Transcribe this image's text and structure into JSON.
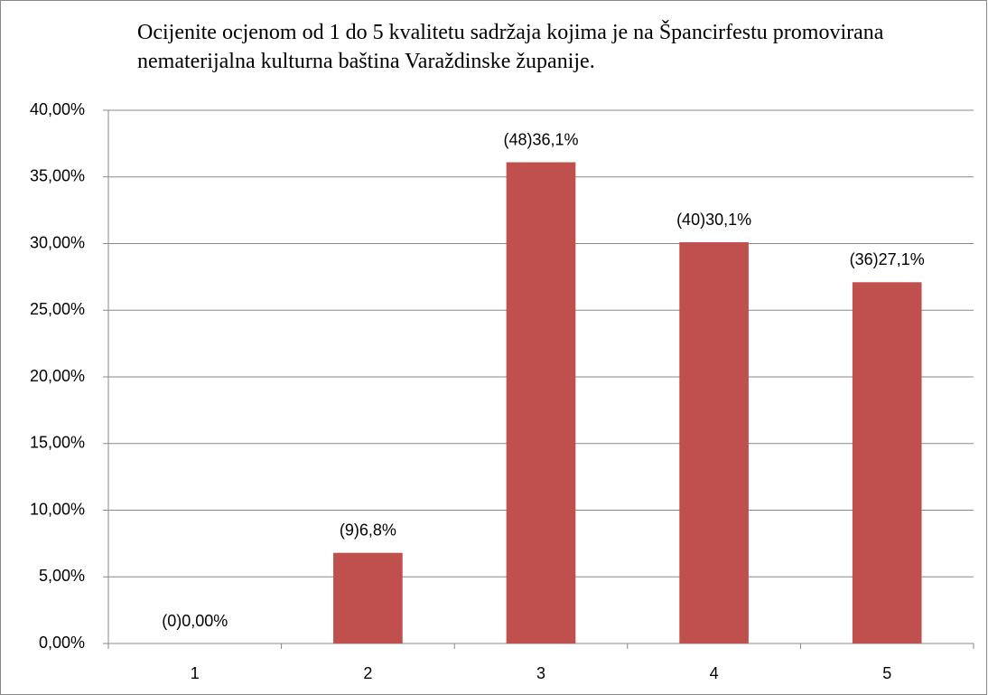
{
  "chart_data": {
    "type": "bar",
    "title": "Ocijenite ocjenom od 1 do 5 kvalitetu sadržaja kojima je na Špancirfestu promovirana nematerijalna kulturna baština Varaždinske županije.",
    "categories": [
      "1",
      "2",
      "3",
      "4",
      "5"
    ],
    "values": [
      0,
      6.8,
      36.1,
      30.1,
      27.1
    ],
    "value_labels": [
      "(0)0,00%",
      "(9)6,8%",
      "(48)36,1%",
      "(40)30,1%",
      "(36)27,1%"
    ],
    "color": "#c0504d",
    "ylim": [
      0,
      40
    ],
    "yticks": [
      {
        "value": 0,
        "label": "0,00%"
      },
      {
        "value": 5,
        "label": "5,00%"
      },
      {
        "value": 10,
        "label": "10,00%"
      },
      {
        "value": 15,
        "label": "15,00%"
      },
      {
        "value": 20,
        "label": "20,00%"
      },
      {
        "value": 25,
        "label": "25,00%"
      },
      {
        "value": 30,
        "label": "30,00%"
      },
      {
        "value": 35,
        "label": "35,00%"
      },
      {
        "value": 40,
        "label": "40,00%"
      }
    ],
    "grid": true
  }
}
